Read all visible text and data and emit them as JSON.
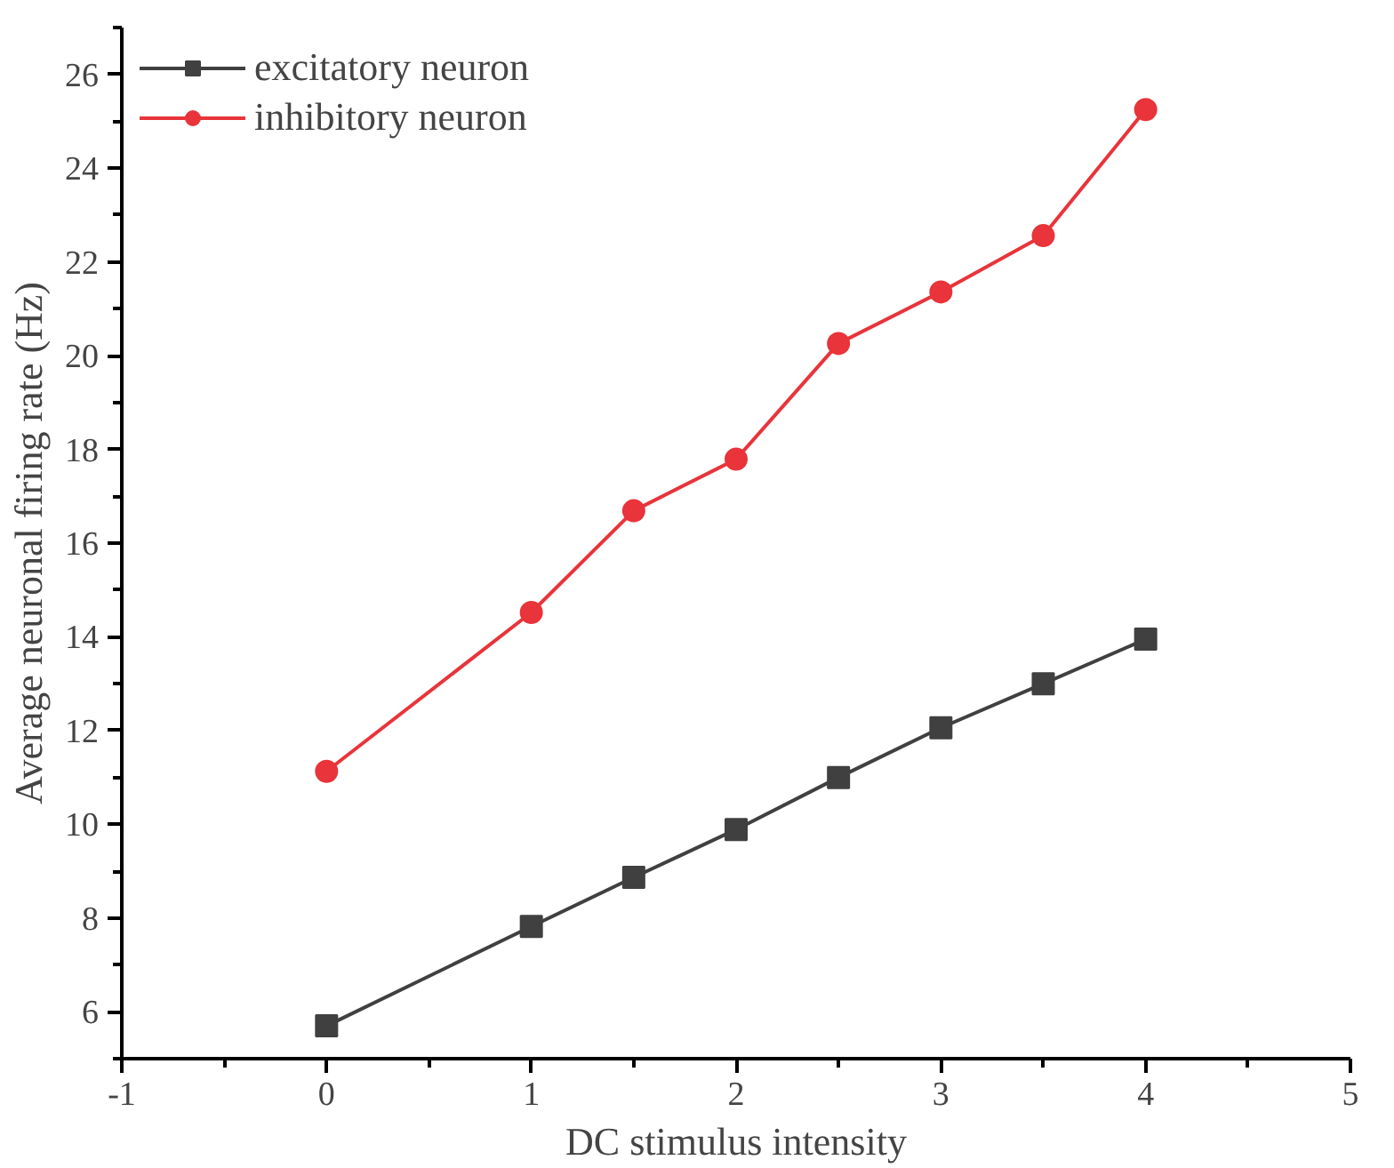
{
  "chart_data": {
    "type": "line",
    "xlabel": "DC stimulus intensity",
    "ylabel": "Average neuronal firing rate (Hz)",
    "x": [
      0,
      1,
      1.5,
      2,
      2.5,
      3,
      3.5,
      4
    ],
    "series": [
      {
        "name": "excitatory neuron",
        "color": "#404040",
        "marker": "square",
        "values": [
          5.7,
          7.82,
          8.87,
          9.89,
          11.0,
          12.06,
          13.0,
          13.95
        ]
      },
      {
        "name": "inhibitory neuron",
        "color": "#e8343a",
        "marker": "circle",
        "values": [
          11.13,
          14.52,
          16.69,
          17.79,
          20.26,
          21.36,
          22.56,
          25.25
        ]
      }
    ],
    "xlim": [
      -1,
      5
    ],
    "xticks": [
      -1,
      0,
      1,
      2,
      3,
      4,
      5
    ],
    "ylim": [
      5,
      27
    ],
    "yticks": [
      6,
      8,
      10,
      12,
      14,
      16,
      18,
      20,
      22,
      24,
      26
    ],
    "grid": false,
    "legend": "top left",
    "line_style": "solid"
  }
}
